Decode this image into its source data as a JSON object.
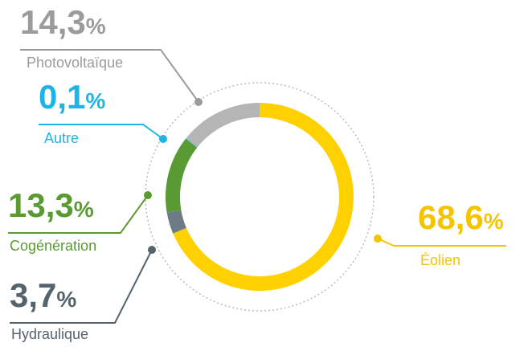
{
  "chart_data": {
    "type": "pie",
    "categories": [
      "Éolien",
      "Hydraulique",
      "Cogénération",
      "Autre",
      "Photovoltaïque"
    ],
    "values": [
      68.6,
      3.7,
      13.3,
      0.1,
      14.3
    ],
    "value_labels": [
      "68,6%",
      "3,7%",
      "13,3%",
      "0,1%",
      "14,3%"
    ],
    "colors": [
      "#ffd100",
      "#6d7b85",
      "#5a9a32",
      "#1eb4e6",
      "#b5b5b5"
    ],
    "label_colors": [
      "#f5c400",
      "#55636d",
      "#5a9a32",
      "#1eb4e6",
      "#9b9b9b"
    ]
  }
}
